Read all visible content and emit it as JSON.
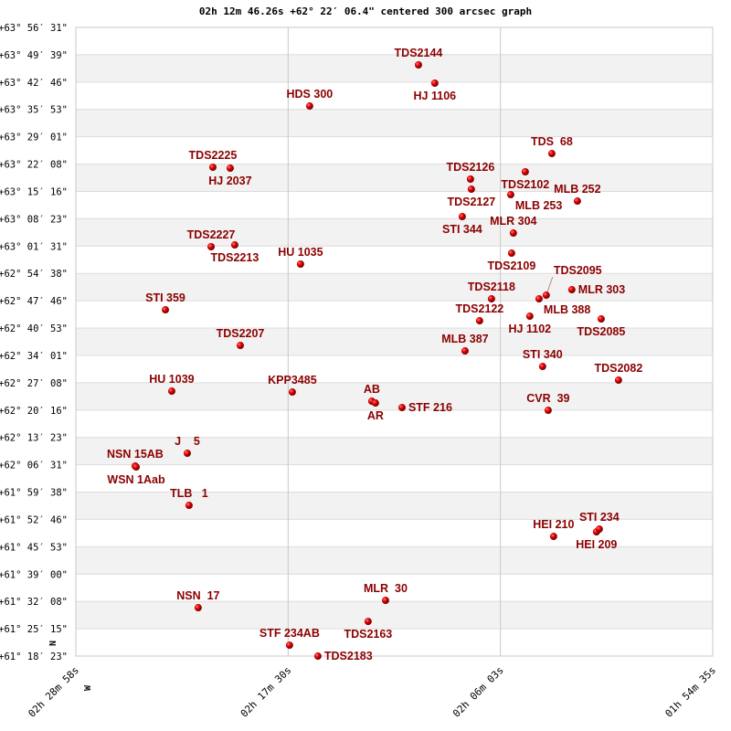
{
  "chart_data": {
    "type": "scatter",
    "title": "02h 12m 46.26s +62° 22′ 06.4\" centered 300 arcsec graph",
    "x_units": "RA (hours, decimal)",
    "y_units": "Dec (degrees, decimal)",
    "xlim": [
      2.48278,
      1.90972
    ],
    "ylim": [
      61.3064,
      63.9419
    ],
    "grid": true,
    "x_tick_labels": [
      "02h 28m 58s",
      "02h 17m 30s",
      "02h 06m 03s",
      "01h 54m 35s"
    ],
    "y_tick_labels": [
      "+63° 56′ 31\"",
      "+63° 49′ 39\"",
      "+63° 42′ 46\"",
      "+63° 35′ 53\"",
      "+63° 29′ 01\"",
      "+63° 22′ 08\"",
      "+63° 15′ 16\"",
      "+63° 08′ 23\"",
      "+63° 01′ 31\"",
      "+62° 54′ 38\"",
      "+62° 47′ 46\"",
      "+62° 40′ 53\"",
      "+62° 34′ 01\"",
      "+62° 27′ 08\"",
      "+62° 20′ 16\"",
      "+62° 13′ 23\"",
      "+62° 06′ 31\"",
      "+61° 59′ 38\"",
      "+61° 52′ 46\"",
      "+61° 45′ 53\"",
      "+61° 39′ 00\"",
      "+61° 32′ 08\"",
      "+61° 25′ 15\"",
      "+61° 18′ 23\""
    ],
    "compass": {
      "north": "N",
      "west": "W"
    },
    "label_color": "#8b0000",
    "point_color": "#dd0000",
    "points": [
      {
        "label": "TDS2144",
        "ra": 2.1745,
        "dec": 63.7848
      },
      {
        "label": "HJ 1106",
        "ra": 2.1598,
        "dec": 63.7082
      },
      {
        "label": "HDS 300",
        "ra": 2.2724,
        "dec": 63.6124
      },
      {
        "label": "TDS  68",
        "ra": 2.0545,
        "dec": 63.4132
      },
      {
        "label": "TDS2102",
        "ra": 2.0784,
        "dec": 63.3366
      },
      {
        "label": "TDS2225",
        "ra": 2.3595,
        "dec": 63.3558
      },
      {
        "label": "HJ 2037",
        "ra": 2.3439,
        "dec": 63.3519
      },
      {
        "label": "TDS2126",
        "ra": 2.1277,
        "dec": 63.306
      },
      {
        "label": "TDS2127",
        "ra": 2.1269,
        "dec": 63.2638
      },
      {
        "label": "MLB 253",
        "ra": 2.0915,
        "dec": 63.2408
      },
      {
        "label": "MLB 252",
        "ra": 2.0315,
        "dec": 63.214
      },
      {
        "label": "STI 344",
        "ra": 2.1351,
        "dec": 63.1489
      },
      {
        "label": "MLR 304",
        "ra": 2.0891,
        "dec": 63.0799
      },
      {
        "label": "TDS2109",
        "ra": 2.0907,
        "dec": 62.9956
      },
      {
        "label": "TDS2227",
        "ra": 2.3611,
        "dec": 63.0225
      },
      {
        "label": "TDS2213",
        "ra": 2.3398,
        "dec": 63.0301
      },
      {
        "label": "HU 1035",
        "ra": 2.2806,
        "dec": 62.9497
      },
      {
        "label": "TDS2118",
        "ra": 2.1088,
        "dec": 62.8041
      },
      {
        "label": "MLB 388",
        "ra": 2.066,
        "dec": 62.8041
      },
      {
        "label": "TDS2095",
        "ra": 2.0595,
        "dec": 62.8194
      },
      {
        "label": "MLR 303",
        "ra": 2.0365,
        "dec": 62.8424
      },
      {
        "label": "HJ 1102",
        "ra": 2.0743,
        "dec": 62.7313
      },
      {
        "label": "TDS2122",
        "ra": 2.1195,
        "dec": 62.7121
      },
      {
        "label": "TDS2085",
        "ra": 2.0101,
        "dec": 62.7198
      },
      {
        "label": "STI 359",
        "ra": 2.4022,
        "dec": 62.7581
      },
      {
        "label": "TDS2207",
        "ra": 2.3348,
        "dec": 62.6087
      },
      {
        "label": "MLB 387",
        "ra": 2.1326,
        "dec": 62.5857
      },
      {
        "label": "STI 340",
        "ra": 2.0628,
        "dec": 62.5206
      },
      {
        "label": "TDS2082",
        "ra": 1.9945,
        "dec": 62.4631
      },
      {
        "label": "HU 1039",
        "ra": 2.3965,
        "dec": 62.4172
      },
      {
        "label": "KPP3485",
        "ra": 2.288,
        "dec": 62.4133
      },
      {
        "label": "AB",
        "ra": 2.2165,
        "dec": 62.375
      },
      {
        "label": "AR",
        "ra": 2.2132,
        "dec": 62.3674
      },
      {
        "label": "STF 216",
        "ra": 2.1893,
        "dec": 62.3482
      },
      {
        "label": "CVR  39",
        "ra": 2.0578,
        "dec": 62.3367
      },
      {
        "label": "J    5",
        "ra": 2.3825,
        "dec": 62.1567
      },
      {
        "label": "NSN 15AB",
        "ra": 2.4294,
        "dec": 62.103
      },
      {
        "label": "WSN 1Aab",
        "ra": 2.4285,
        "dec": 62.0992
      },
      {
        "label": "TLB   1",
        "ra": 2.3809,
        "dec": 61.9383
      },
      {
        "label": "HEI 210",
        "ra": 2.0529,
        "dec": 61.808
      },
      {
        "label": "HEI 209",
        "ra": 2.0143,
        "dec": 61.8272
      },
      {
        "label": "STI 234",
        "ra": 2.0118,
        "dec": 61.8387
      },
      {
        "label": "NSN  17",
        "ra": 2.3727,
        "dec": 61.5092
      },
      {
        "label": "MLR  30",
        "ra": 2.2041,
        "dec": 61.5399
      },
      {
        "label": "TDS2163",
        "ra": 2.2198,
        "dec": 61.4517
      },
      {
        "label": "STF 234AB",
        "ra": 2.2905,
        "dec": 61.3521
      },
      {
        "label": "TDS2183",
        "ra": 2.265,
        "dec": 61.3062
      }
    ]
  }
}
